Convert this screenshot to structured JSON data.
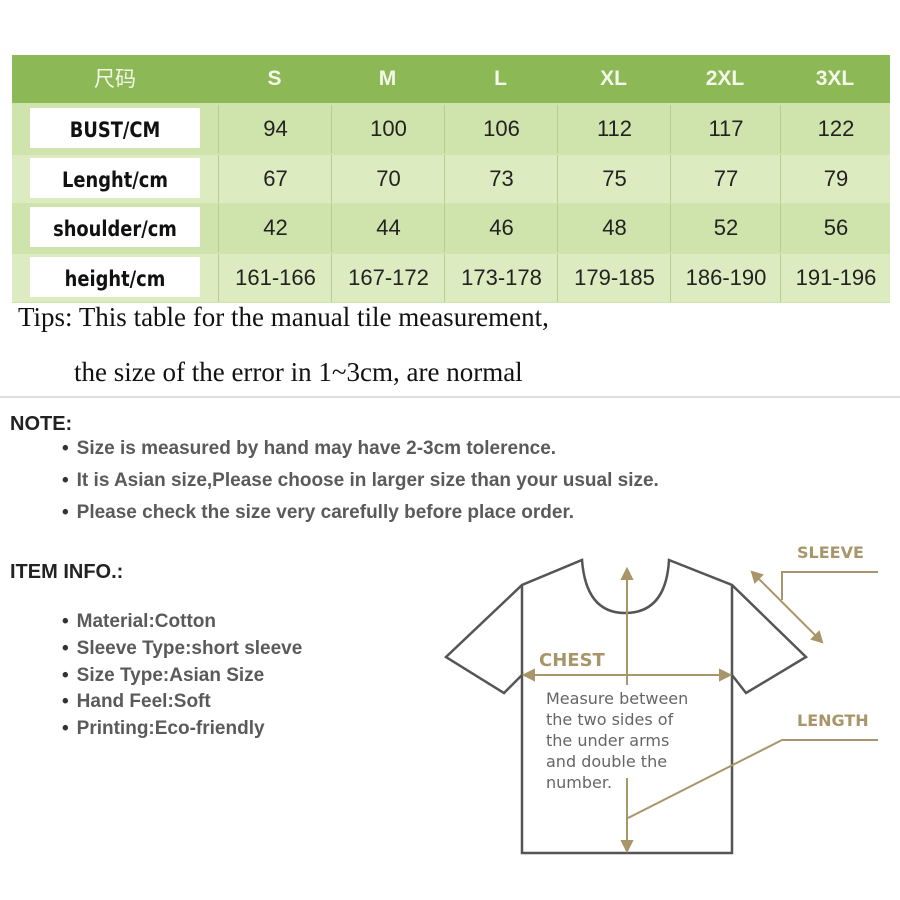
{
  "table": {
    "corner": "尺码",
    "sizes": [
      "S",
      "M",
      "L",
      "XL",
      "2XL",
      "3XL"
    ],
    "rows": [
      {
        "label": "BUST/CM",
        "values": [
          "94",
          "100",
          "106",
          "112",
          "117",
          "122"
        ]
      },
      {
        "label": "Lenght/cm",
        "values": [
          "67",
          "70",
          "73",
          "75",
          "77",
          "79"
        ]
      },
      {
        "label": "shoulder/cm",
        "values": [
          "42",
          "44",
          "46",
          "48",
          "52",
          "56"
        ]
      },
      {
        "label": "height/cm",
        "values": [
          "161-166",
          "167-172",
          "173-178",
          "179-185",
          "186-190",
          "191-196"
        ]
      }
    ],
    "colors": {
      "header": "#8cb856",
      "body": "#cfe4ac"
    }
  },
  "tips": {
    "line1": "Tips: This table for the manual tile measurement,",
    "line2": "the size of the error in 1~3cm, are normal"
  },
  "note": {
    "title": "NOTE:",
    "items": [
      "Size is measured by hand may have 2-3cm tolerence.",
      "It is Asian size,Please choose in larger size than your usual size.",
      "Please check the size very carefully before place order."
    ]
  },
  "item_info": {
    "title": "ITEM INFO.:",
    "items": [
      "Material:Cotton",
      "Sleeve Type:short sleeve",
      "Size Type:Asian Size",
      "Hand Feel:Soft",
      "Printing:Eco-friendly"
    ]
  },
  "diagram": {
    "sleeve": "SLEEVE",
    "chest": "CHEST",
    "length": "LENGTH",
    "instructions": [
      "Measure between",
      "the two sides of",
      "the under arms",
      "and double the",
      "number."
    ]
  }
}
